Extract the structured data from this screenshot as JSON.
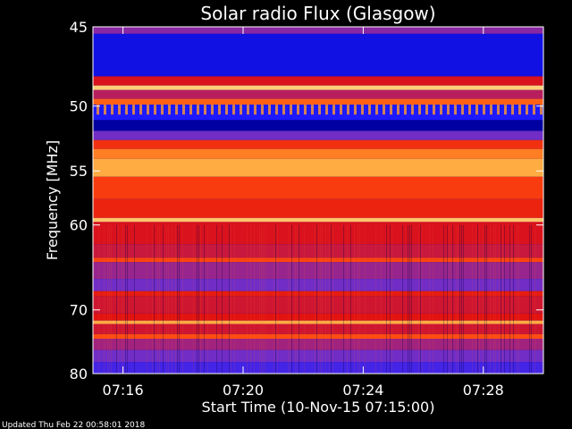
{
  "chart_data": {
    "type": "heatmap",
    "title": "Solar radio Flux (Glasgow)",
    "xlabel": "Start Time (10-Nov-15 07:15:00)",
    "ylabel": "Frequency [MHz]",
    "x_ticks": [
      {
        "label": "07:16",
        "minutes": 1
      },
      {
        "label": "07:20",
        "minutes": 5
      },
      {
        "label": "07:24",
        "minutes": 9
      },
      {
        "label": "07:28",
        "minutes": 13
      }
    ],
    "xlim_minutes": [
      0,
      15
    ],
    "y_ticks": [
      {
        "label": "45",
        "value": 45
      },
      {
        "label": "50",
        "value": 50
      },
      {
        "label": "55",
        "value": 55
      },
      {
        "label": "60",
        "value": 60
      },
      {
        "label": "70",
        "value": 70
      },
      {
        "label": "80",
        "value": 80
      }
    ],
    "ylim": [
      45,
      80
    ],
    "y_scale": "reciprocal",
    "grid": false,
    "colorscale": [
      "#0000a0",
      "#1818ff",
      "#6a2ed0",
      "#b0206a",
      "#e01010",
      "#ff4a10",
      "#ffa030",
      "#ffe8a0"
    ],
    "bands": [
      {
        "from": 45.0,
        "to": 45.4,
        "intensity": 0.35
      },
      {
        "from": 45.4,
        "to": 48.0,
        "intensity": 0.1
      },
      {
        "from": 48.0,
        "to": 48.6,
        "intensity": 0.55
      },
      {
        "from": 48.6,
        "to": 48.9,
        "intensity": 0.95
      },
      {
        "from": 48.9,
        "to": 49.5,
        "intensity": 0.45
      },
      {
        "from": 49.5,
        "to": 49.9,
        "intensity": 0.75
      },
      {
        "from": 49.9,
        "to": 51.0,
        "intensity": 0.15
      },
      {
        "from": 51.0,
        "to": 51.8,
        "intensity": 0.0
      },
      {
        "from": 51.8,
        "to": 52.5,
        "intensity": 0.3
      },
      {
        "from": 52.5,
        "to": 53.2,
        "intensity": 0.65
      },
      {
        "from": 53.2,
        "to": 54.0,
        "intensity": 0.8
      },
      {
        "from": 54.0,
        "to": 55.5,
        "intensity": 0.88
      },
      {
        "from": 55.5,
        "to": 57.5,
        "intensity": 0.68
      },
      {
        "from": 57.5,
        "to": 59.3,
        "intensity": 0.62
      },
      {
        "from": 59.3,
        "to": 59.7,
        "intensity": 0.93
      },
      {
        "from": 59.7,
        "to": 62.0,
        "intensity": 0.55
      },
      {
        "from": 62.0,
        "to": 63.5,
        "intensity": 0.5
      },
      {
        "from": 63.5,
        "to": 64.0,
        "intensity": 0.7
      },
      {
        "from": 64.0,
        "to": 66.0,
        "intensity": 0.38
      },
      {
        "from": 66.0,
        "to": 67.5,
        "intensity": 0.3
      },
      {
        "from": 67.5,
        "to": 68.2,
        "intensity": 0.6
      },
      {
        "from": 68.2,
        "to": 70.5,
        "intensity": 0.52
      },
      {
        "from": 70.5,
        "to": 71.5,
        "intensity": 0.58
      },
      {
        "from": 71.5,
        "to": 72.0,
        "intensity": 0.88
      },
      {
        "from": 72.0,
        "to": 73.5,
        "intensity": 0.52
      },
      {
        "from": 73.5,
        "to": 74.2,
        "intensity": 0.72
      },
      {
        "from": 74.2,
        "to": 76.0,
        "intensity": 0.4
      },
      {
        "from": 76.0,
        "to": 78.0,
        "intensity": 0.3
      },
      {
        "from": 78.0,
        "to": 80.0,
        "intensity": 0.22
      }
    ]
  },
  "footer": {
    "updated": "Updated Thu Feb 22 00:58:01 2018"
  }
}
